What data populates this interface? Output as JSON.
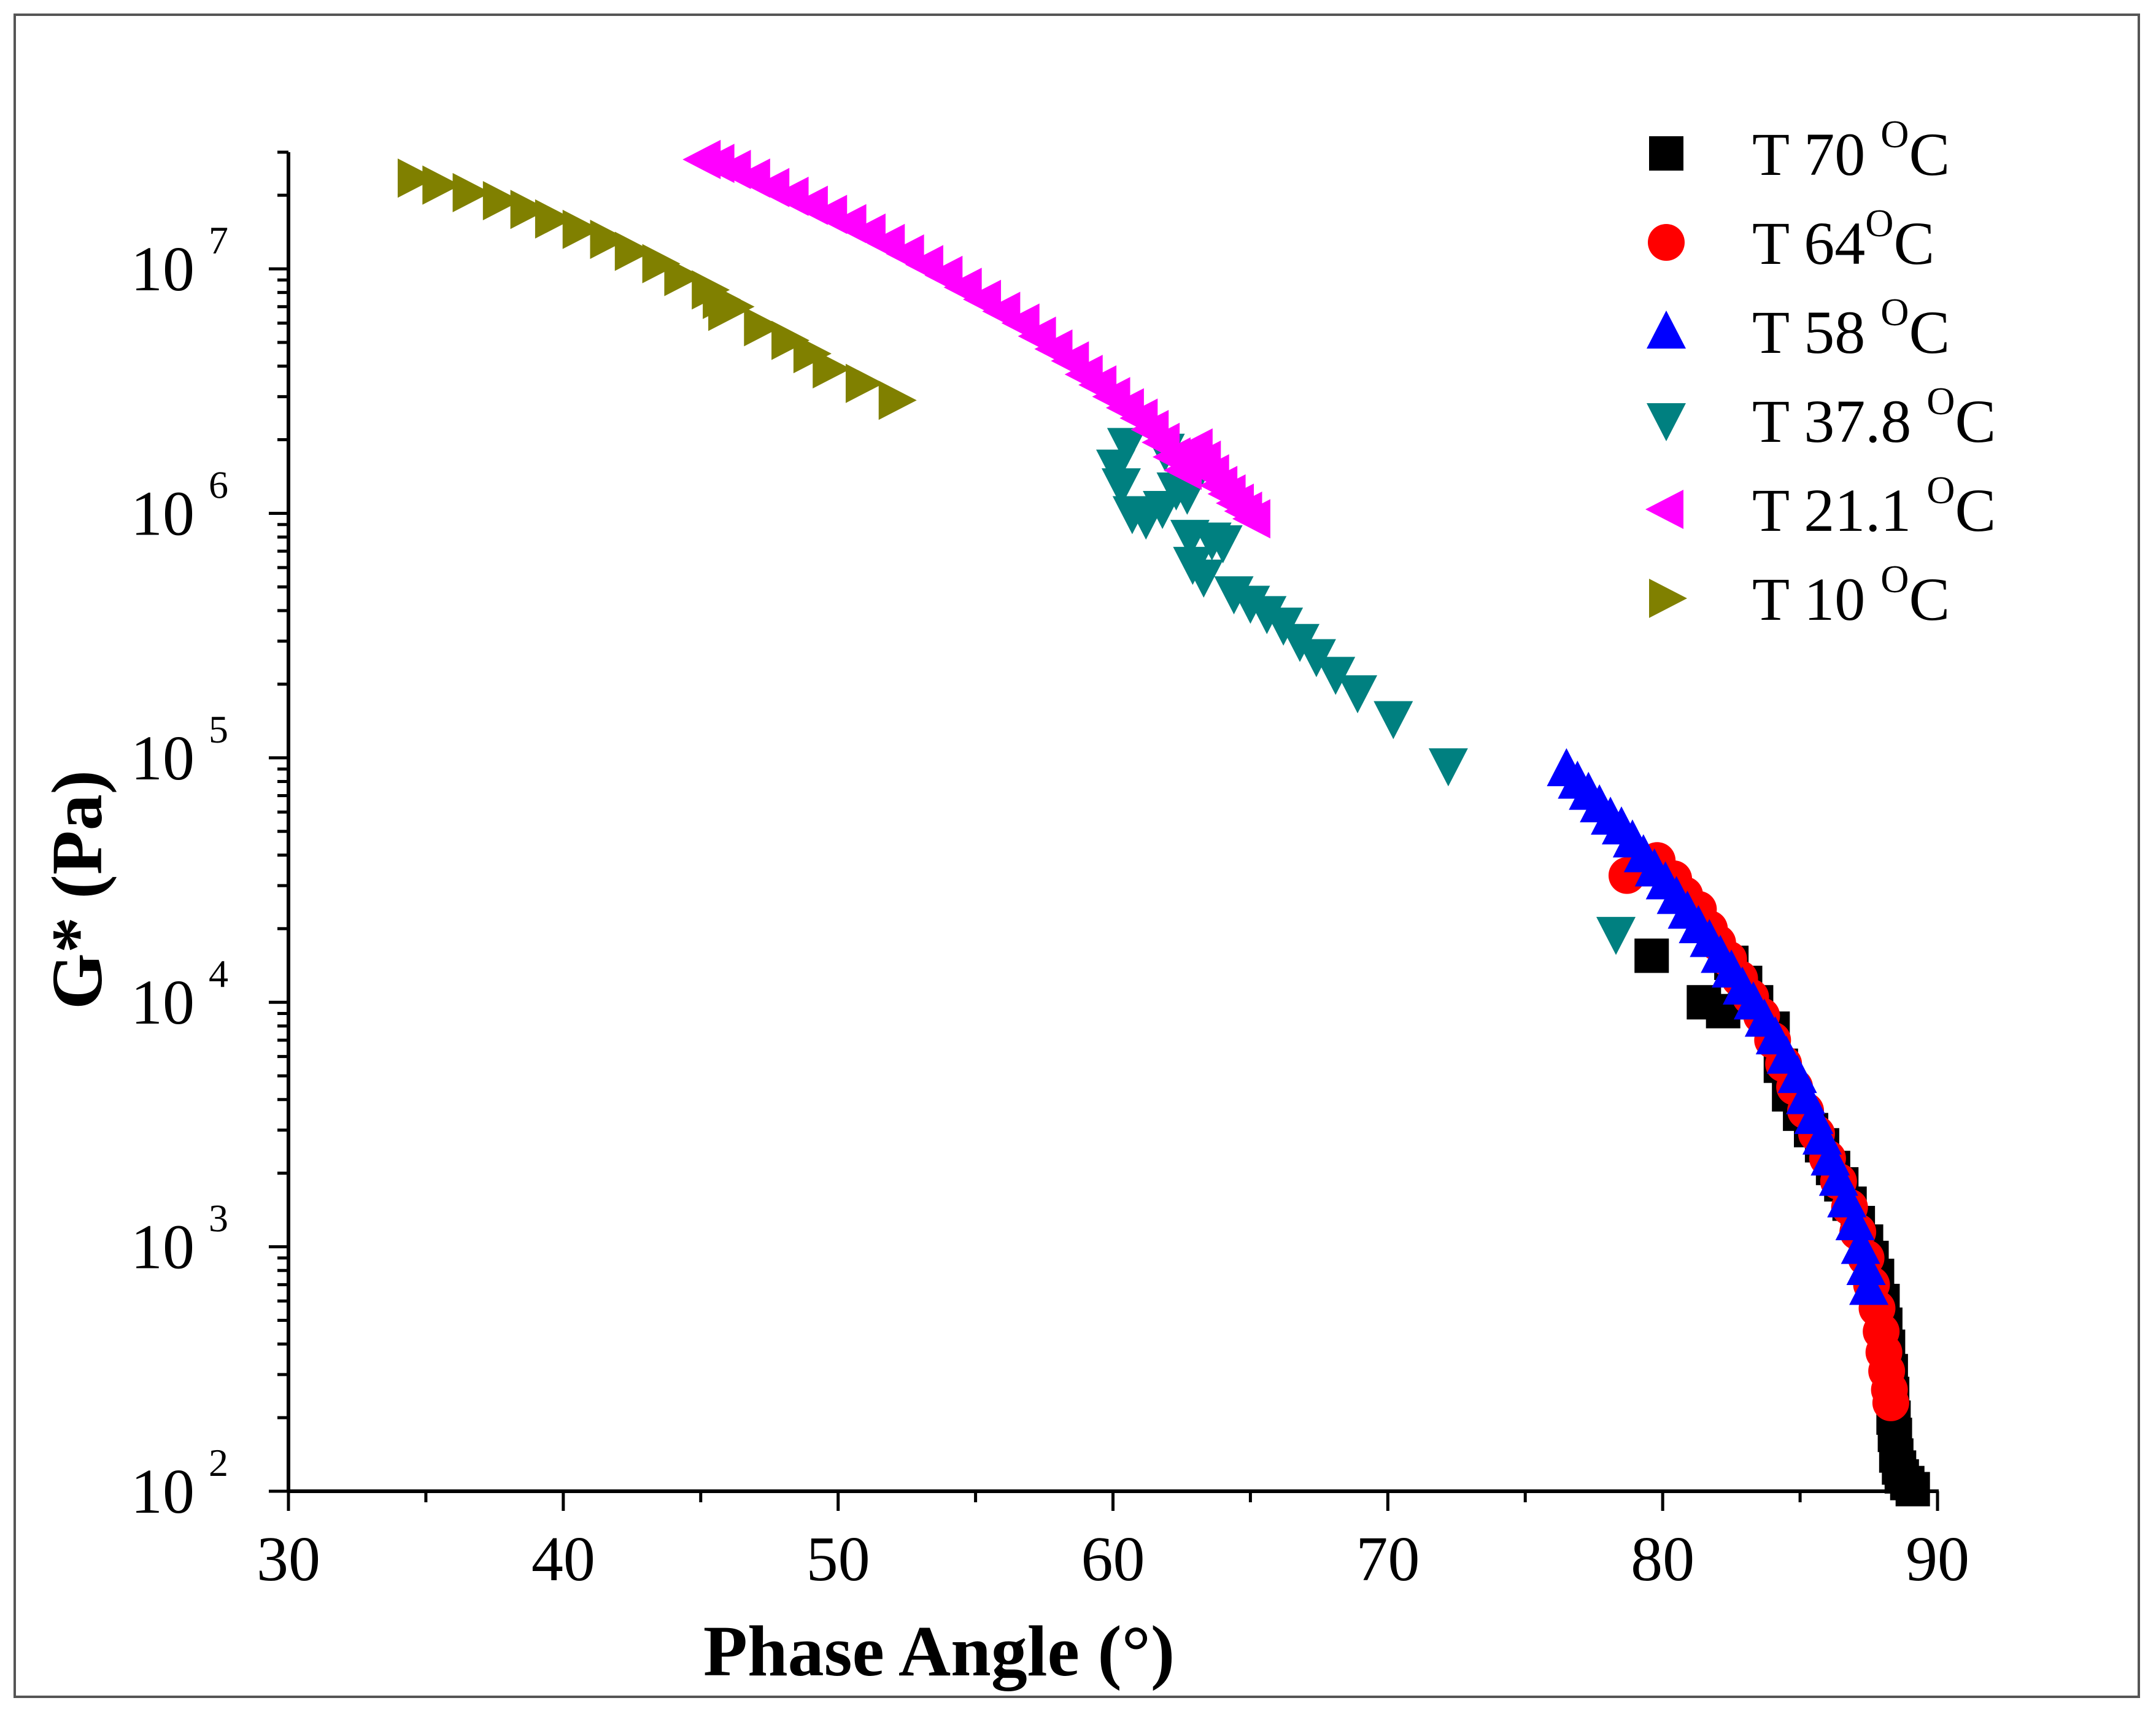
{
  "chart_data": {
    "type": "scatter",
    "title": "",
    "xlabel": "Phase Angle (°)",
    "ylabel": "G* (Pa)",
    "x_range": [
      30,
      90
    ],
    "y_range": [
      100,
      30000000
    ],
    "y_scale": "log",
    "x_ticks": [
      30,
      40,
      50,
      60,
      70,
      80,
      90
    ],
    "y_ticks": [
      {
        "value": 100,
        "base": "10",
        "exp": "2"
      },
      {
        "value": 1000,
        "base": "10",
        "exp": "3"
      },
      {
        "value": 10000,
        "base": "10",
        "exp": "4"
      },
      {
        "value": 100000,
        "base": "10",
        "exp": "5"
      },
      {
        "value": 1000000,
        "base": "10",
        "exp": "6"
      },
      {
        "value": 10000000,
        "base": "10",
        "exp": "7"
      }
    ],
    "grid": false,
    "legend_position": "top-right",
    "series": [
      {
        "name": "T 70 °C",
        "label_main": "T 70 ",
        "label_sup": "O",
        "label_end": "C",
        "marker": "square",
        "color": "#000000",
        "points": [
          [
            79.6,
            15500
          ],
          [
            81.5,
            10000
          ],
          [
            82.2,
            9200
          ],
          [
            82.5,
            14500
          ],
          [
            83.0,
            12000
          ],
          [
            83.4,
            10000
          ],
          [
            84.0,
            7800
          ],
          [
            84.3,
            5500
          ],
          [
            84.6,
            4200
          ],
          [
            85.0,
            3500
          ],
          [
            85.4,
            3000
          ],
          [
            85.8,
            2600
          ],
          [
            86.2,
            2100
          ],
          [
            86.5,
            1800
          ],
          [
            86.8,
            1500
          ],
          [
            87.1,
            1250
          ],
          [
            87.4,
            1050
          ],
          [
            87.6,
            900
          ],
          [
            87.8,
            760
          ],
          [
            88.0,
            600
          ],
          [
            88.1,
            480
          ],
          [
            88.2,
            390
          ],
          [
            88.3,
            310
          ],
          [
            88.35,
            250
          ],
          [
            88.4,
            200
          ],
          [
            88.45,
            170
          ],
          [
            88.5,
            140
          ],
          [
            88.6,
            125
          ],
          [
            88.7,
            115
          ],
          [
            88.9,
            108
          ],
          [
            89.1,
            102
          ]
        ]
      },
      {
        "name": "T 64°C",
        "label_main": "T 64",
        "label_sup": "O",
        "label_end": "C",
        "marker": "circle",
        "color": "#ff0000",
        "points": [
          [
            78.7,
            33000
          ],
          [
            79.3,
            37000
          ],
          [
            79.8,
            38000
          ],
          [
            80.4,
            32000
          ],
          [
            80.8,
            27500
          ],
          [
            81.3,
            24000
          ],
          [
            81.7,
            20000
          ],
          [
            82.0,
            17500
          ],
          [
            82.4,
            15000
          ],
          [
            82.8,
            12500
          ],
          [
            83.2,
            10500
          ],
          [
            83.6,
            8800
          ],
          [
            84.0,
            7000
          ],
          [
            84.4,
            5600
          ],
          [
            84.8,
            4500
          ],
          [
            85.2,
            3600
          ],
          [
            85.6,
            2900
          ],
          [
            86.0,
            2300
          ],
          [
            86.4,
            1850
          ],
          [
            86.8,
            1450
          ],
          [
            87.1,
            1150
          ],
          [
            87.4,
            900
          ],
          [
            87.6,
            700
          ],
          [
            87.8,
            560
          ],
          [
            87.95,
            450
          ],
          [
            88.05,
            370
          ],
          [
            88.15,
            310
          ],
          [
            88.25,
            260
          ],
          [
            88.3,
            230
          ]
        ]
      },
      {
        "name": "T 58 °C",
        "label_main": "T 58 ",
        "label_sup": "O",
        "label_end": "C",
        "marker": "triangle-up",
        "color": "#0000ff",
        "points": [
          [
            76.5,
            90000
          ],
          [
            76.9,
            80000
          ],
          [
            77.3,
            72000
          ],
          [
            77.7,
            64000
          ],
          [
            78.1,
            57000
          ],
          [
            78.5,
            52000
          ],
          [
            78.9,
            46000
          ],
          [
            79.3,
            40000
          ],
          [
            79.7,
            35000
          ],
          [
            80.1,
            31000
          ],
          [
            80.5,
            27000
          ],
          [
            80.9,
            23500
          ],
          [
            81.3,
            20500
          ],
          [
            81.7,
            18000
          ],
          [
            82.1,
            15500
          ],
          [
            82.5,
            13500
          ],
          [
            82.9,
            11500
          ],
          [
            83.3,
            10000
          ],
          [
            83.7,
            8500
          ],
          [
            84.1,
            7200
          ],
          [
            84.5,
            6000
          ],
          [
            84.9,
            5000
          ],
          [
            85.2,
            4100
          ],
          [
            85.5,
            3400
          ],
          [
            85.8,
            2800
          ],
          [
            86.1,
            2300
          ],
          [
            86.4,
            1900
          ],
          [
            86.7,
            1550
          ],
          [
            87.0,
            1250
          ],
          [
            87.2,
            1000
          ],
          [
            87.4,
            820
          ],
          [
            87.5,
            680
          ]
        ]
      },
      {
        "name": "T 37.8 °C",
        "label_main": "T 37.8 ",
        "label_sup": "O",
        "label_end": "C",
        "marker": "triangle-down",
        "color": "#008080",
        "points": [
          [
            60.1,
            1550000
          ],
          [
            60.3,
            1300000
          ],
          [
            60.5,
            1900000
          ],
          [
            60.7,
            1000000
          ],
          [
            61.2,
            950000
          ],
          [
            61.8,
            1050000
          ],
          [
            61.9,
            1800000
          ],
          [
            62.3,
            1250000
          ],
          [
            62.7,
            1200000
          ],
          [
            62.8,
            800000
          ],
          [
            62.9,
            620000
          ],
          [
            63.1,
            1600000
          ],
          [
            63.3,
            550000
          ],
          [
            63.6,
            780000
          ],
          [
            64.0,
            760000
          ],
          [
            64.4,
            470000
          ],
          [
            65.0,
            430000
          ],
          [
            65.6,
            390000
          ],
          [
            66.2,
            350000
          ],
          [
            66.8,
            300000
          ],
          [
            67.4,
            260000
          ],
          [
            68.1,
            220000
          ],
          [
            68.9,
            185000
          ],
          [
            70.2,
            145000
          ],
          [
            72.2,
            93000
          ],
          [
            78.3,
            19000
          ]
        ]
      },
      {
        "name": "T 21.1 °C",
        "label_main": "T 21.1 ",
        "label_sup": "O",
        "label_end": "C",
        "marker": "triangle-left",
        "color": "#ff00ff",
        "points": [
          [
            45.1,
            28000000
          ],
          [
            45.6,
            27000000
          ],
          [
            46.2,
            25500000
          ],
          [
            46.9,
            23500000
          ],
          [
            47.6,
            21500000
          ],
          [
            48.3,
            19800000
          ],
          [
            49.0,
            18200000
          ],
          [
            49.7,
            16700000
          ],
          [
            50.4,
            15300000
          ],
          [
            51.1,
            14000000
          ],
          [
            51.8,
            12700000
          ],
          [
            52.5,
            11500000
          ],
          [
            53.2,
            10400000
          ],
          [
            53.9,
            9400000
          ],
          [
            54.6,
            8400000
          ],
          [
            55.3,
            7500000
          ],
          [
            56.0,
            6700000
          ],
          [
            56.7,
            6000000
          ],
          [
            57.3,
            5300000
          ],
          [
            57.9,
            4700000
          ],
          [
            58.5,
            4200000
          ],
          [
            59.0,
            3700000
          ],
          [
            59.5,
            3350000
          ],
          [
            60.0,
            3000000
          ],
          [
            60.5,
            2700000
          ],
          [
            61.0,
            2450000
          ],
          [
            61.4,
            2200000
          ],
          [
            61.8,
            1950000
          ],
          [
            62.2,
            1700000
          ],
          [
            62.6,
            1500000
          ],
          [
            63.0,
            1850000
          ],
          [
            63.3,
            1650000
          ],
          [
            63.6,
            1450000
          ],
          [
            63.9,
            1300000
          ],
          [
            64.2,
            1200000
          ],
          [
            64.5,
            1100000
          ],
          [
            64.8,
            1020000
          ],
          [
            65.1,
            950000
          ]
        ]
      },
      {
        "name": "T 10 °C",
        "label_main": "T 10 ",
        "label_sup": "O",
        "label_end": "C",
        "marker": "triangle-right",
        "color": "#808000",
        "points": [
          [
            34.6,
            23500000
          ],
          [
            35.5,
            22000000
          ],
          [
            36.6,
            20500000
          ],
          [
            37.7,
            19000000
          ],
          [
            38.7,
            17500000
          ],
          [
            39.6,
            16000000
          ],
          [
            40.6,
            14500000
          ],
          [
            41.6,
            13200000
          ],
          [
            42.5,
            11800000
          ],
          [
            43.5,
            10500000
          ],
          [
            44.3,
            9300000
          ],
          [
            45.3,
            8200000
          ],
          [
            45.7,
            7500000
          ],
          [
            45.9,
            6700000
          ],
          [
            46.2,
            7000000
          ],
          [
            47.2,
            5800000
          ],
          [
            48.2,
            5100000
          ],
          [
            49.0,
            4500000
          ],
          [
            49.7,
            3900000
          ],
          [
            50.9,
            3400000
          ],
          [
            52.1,
            2900000
          ]
        ]
      }
    ]
  }
}
